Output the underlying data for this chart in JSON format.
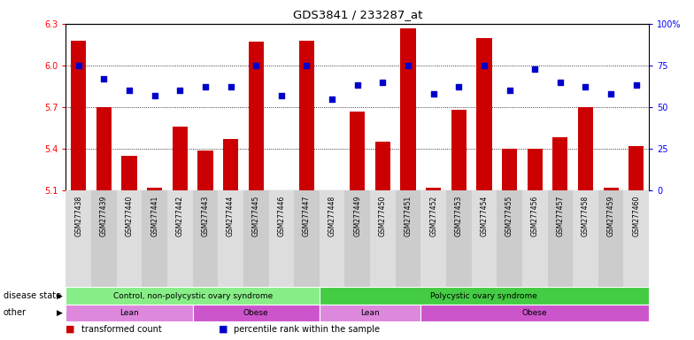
{
  "title": "GDS3841 / 233287_at",
  "samples": [
    "GSM277438",
    "GSM277439",
    "GSM277440",
    "GSM277441",
    "GSM277442",
    "GSM277443",
    "GSM277444",
    "GSM277445",
    "GSM277446",
    "GSM277447",
    "GSM277448",
    "GSM277449",
    "GSM277450",
    "GSM277451",
    "GSM277452",
    "GSM277453",
    "GSM277454",
    "GSM277455",
    "GSM277456",
    "GSM277457",
    "GSM277458",
    "GSM277459",
    "GSM277460"
  ],
  "transformed_count": [
    6.18,
    5.7,
    5.35,
    5.12,
    5.56,
    5.39,
    5.47,
    6.17,
    5.1,
    6.18,
    5.1,
    5.67,
    5.45,
    6.27,
    5.12,
    5.68,
    6.2,
    5.4,
    5.4,
    5.48,
    5.7,
    5.12,
    5.42
  ],
  "percentile_rank": [
    75,
    67,
    60,
    57,
    60,
    62,
    62,
    75,
    57,
    75,
    55,
    63,
    65,
    75,
    58,
    62,
    75,
    60,
    73,
    65,
    62,
    58,
    63
  ],
  "ylim_left": [
    5.1,
    6.3
  ],
  "ylim_right": [
    0,
    100
  ],
  "yticks_left": [
    5.1,
    5.4,
    5.7,
    6.0,
    6.3
  ],
  "yticks_right": [
    0,
    25,
    50,
    75,
    100
  ],
  "bar_color": "#cc0000",
  "dot_color": "#0000cc",
  "disease_state_groups": [
    {
      "label": "Control, non-polycystic ovary syndrome",
      "start": 0,
      "end": 10,
      "color": "#88ee88"
    },
    {
      "label": "Polycystic ovary syndrome",
      "start": 10,
      "end": 23,
      "color": "#44cc44"
    }
  ],
  "other_groups": [
    {
      "label": "Lean",
      "start": 0,
      "end": 5,
      "color": "#dd88dd"
    },
    {
      "label": "Obese",
      "start": 5,
      "end": 10,
      "color": "#cc55cc"
    },
    {
      "label": "Lean",
      "start": 10,
      "end": 14,
      "color": "#dd88dd"
    },
    {
      "label": "Obese",
      "start": 14,
      "end": 23,
      "color": "#cc55cc"
    }
  ],
  "disease_state_label": "disease state",
  "other_label": "other",
  "legend_bar_label": "transformed count",
  "legend_dot_label": "percentile rank within the sample",
  "bar_color_legend": "#cc0000",
  "dot_color_legend": "#0000cc"
}
